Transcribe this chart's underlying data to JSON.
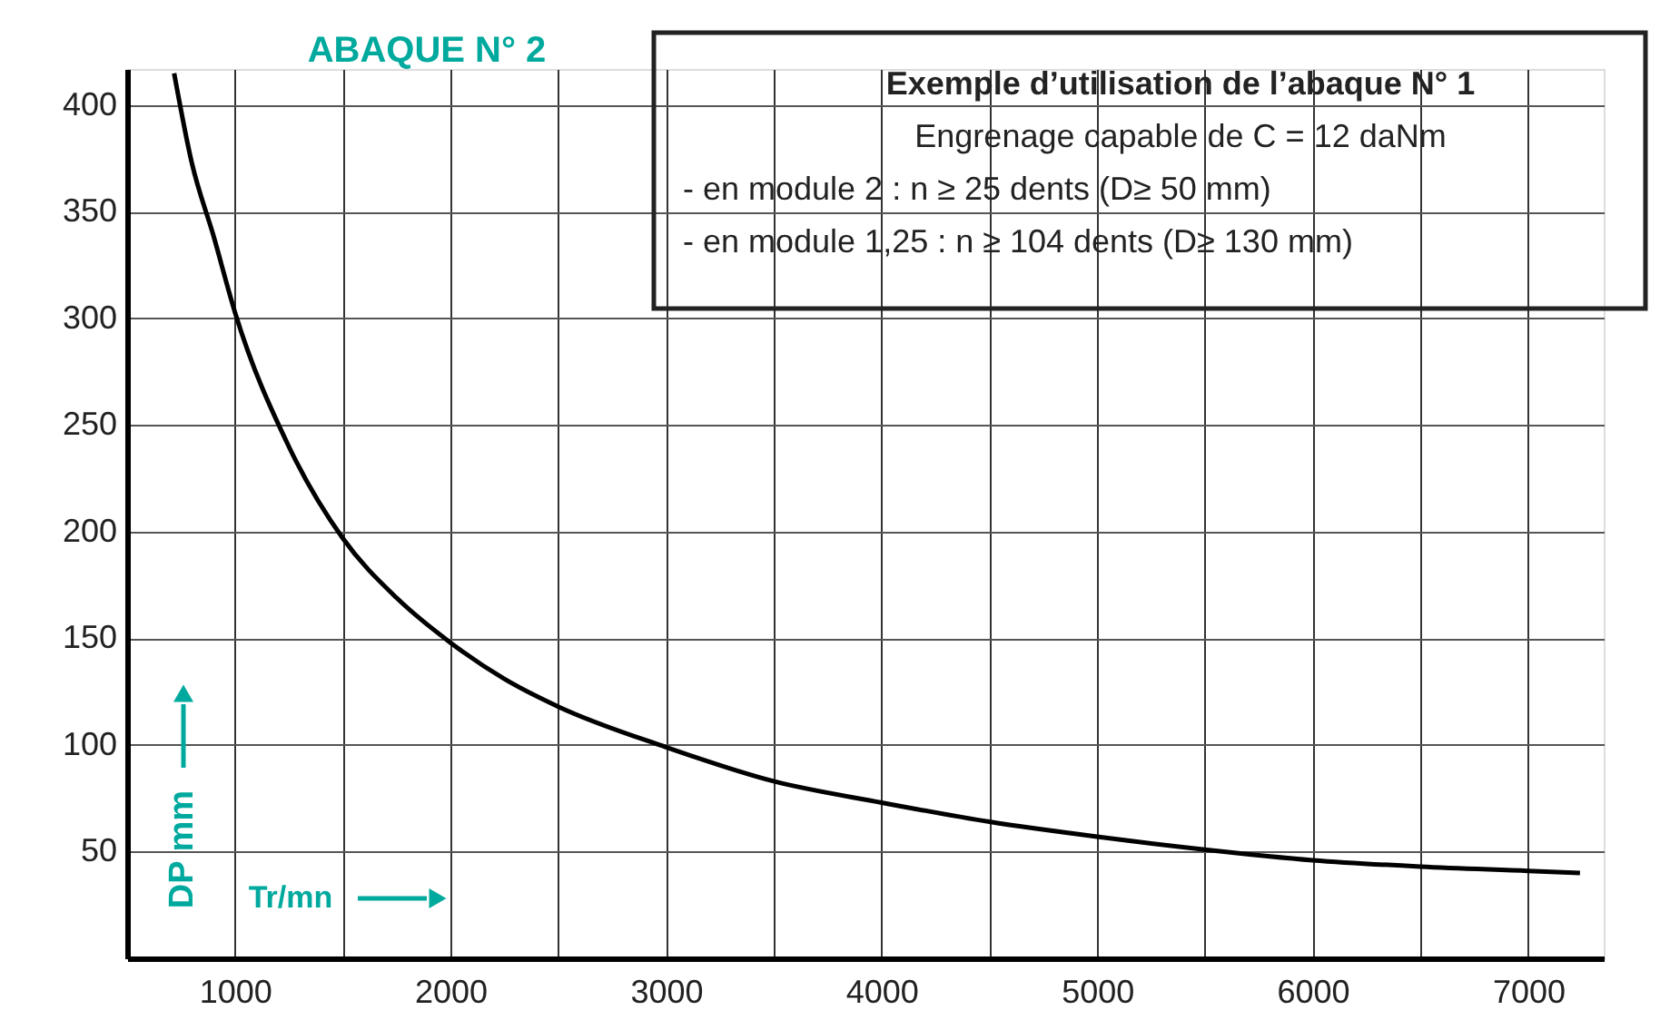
{
  "chart_data": {
    "type": "line",
    "title": "ABAQUE N° 2",
    "xlabel": "Tr/mn",
    "ylabel": "DP mm",
    "annotations": [
      "Exemple d’utilisation de l’abaque N° 1",
      "Engrenage capable de C = 12 daNm",
      "- en module 2 : n ≥ 25 dents (D≥ 50 mm)",
      "- en module 1,25 : n ≥ 104 dents (D≥ 130 mm)"
    ],
    "x": [
      718,
      800,
      900,
      1000,
      1250,
      1500,
      1750,
      2000,
      2250,
      2500,
      3000,
      3500,
      4000,
      4500,
      5000,
      5500,
      6000,
      6500,
      7000,
      7240
    ],
    "series": [
      {
        "color": "#000000",
        "values": [
          415,
          373,
          339,
          303,
          240,
          197,
          169,
          148,
          131,
          118,
          99,
          83,
          73,
          64,
          57,
          51,
          46,
          43,
          41,
          40
        ]
      }
    ],
    "xlim": [
      500,
      7350
    ],
    "ylim": [
      0,
      417
    ],
    "xticks": [
      1000,
      {
        "value": 1500,
        "label": null
      },
      2000,
      {
        "value": 2500,
        "label": null
      },
      3000,
      {
        "value": 3500,
        "label": null
      },
      4000,
      {
        "value": 4500,
        "label": null
      },
      5000,
      {
        "value": 5500,
        "label": null
      },
      6000,
      {
        "value": 6500,
        "label": null
      },
      7000
    ],
    "yticks": [
      50,
      100,
      150,
      200,
      250,
      300,
      350,
      400
    ],
    "grid": true,
    "marker": "none",
    "line_style": "solid"
  }
}
